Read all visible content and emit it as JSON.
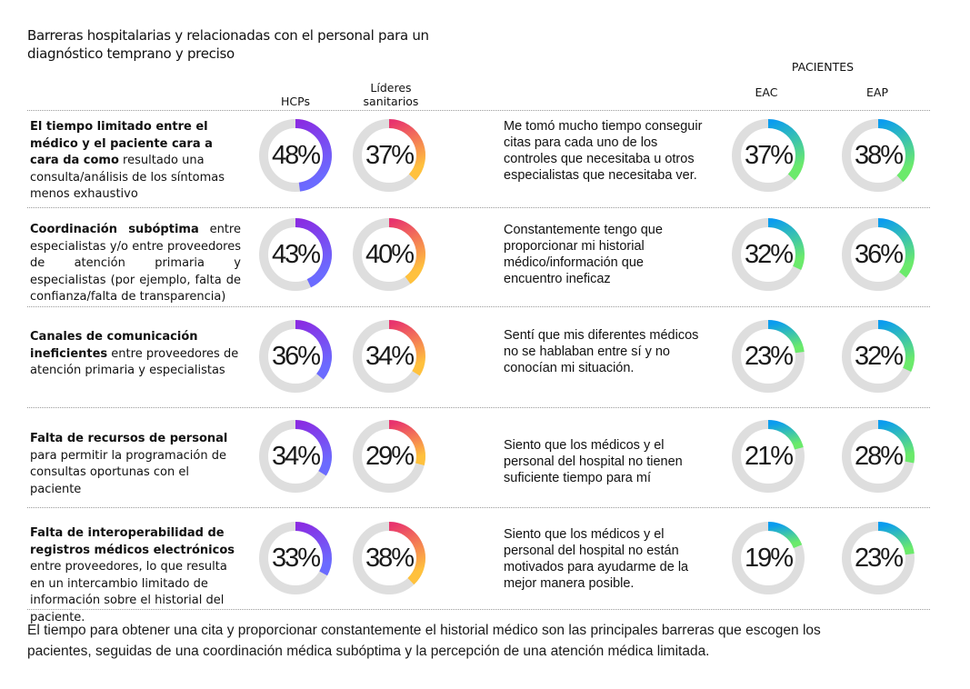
{
  "chart_data": {
    "type": "donut-grid",
    "title": "Barreras hospitalarias y relacionadas con el personal para un diagnóstico temprano y preciso",
    "group_header": "PACIENTES",
    "columns": [
      "HCPs",
      "Líderes sanitarios",
      "EAC",
      "EAP"
    ],
    "colors": {
      "HCPs": [
        "#8a2be2",
        "#6b6bff"
      ],
      "Líderes sanitarios": [
        "#e8336e",
        "#ffc13d"
      ],
      "EAC": [
        "#0a9cf0",
        "#6bea6b"
      ],
      "EAP": [
        "#0a9cf0",
        "#6bea6b"
      ],
      "track": "#dedede"
    },
    "rows": [
      {
        "hcp_bold": "El tiempo limitado entre el médico y el paciente cara a cara da como",
        "hcp_rest": " resultado una consulta/análisis de los síntomas menos exhaustivo",
        "patient_text": "Me tomó mucho tiempo conseguir citas para cada uno de los controles que necesitaba u otros especialistas que necesitaba ver.",
        "values": [
          48,
          37,
          37,
          38
        ]
      },
      {
        "hcp_bold": "Coordinación subóptima",
        "hcp_rest": " entre especialistas y/o entre proveedores de atención primaria y especialistas (por ejemplo, falta de confianza/falta de transparencia)",
        "patient_text": "Constantemente tengo que proporcionar mi historial médico/información que encuentro ineficaz",
        "values": [
          43,
          40,
          32,
          36
        ]
      },
      {
        "hcp_bold": "Canales de comunicación ineficientes",
        "hcp_rest": " entre proveedores de atención primaria y especialistas",
        "patient_text": "Sentí que mis diferentes médicos no se hablaban entre sí y no conocían mi situación.",
        "values": [
          36,
          34,
          23,
          32
        ]
      },
      {
        "hcp_bold": "Falta de recursos de personal",
        "hcp_rest": " para permitir la programación de consultas oportunas con el paciente",
        "patient_text": "Siento que los médicos y el personal del hospital no tienen suficiente tiempo para mí",
        "values": [
          34,
          29,
          21,
          28
        ]
      },
      {
        "hcp_bold": "Falta de interoperabilidad de registros médicos electrónicos",
        "hcp_rest": " entre proveedores, lo que resulta en un intercambio limitado de información sobre el historial del paciente.",
        "patient_text": "Siento que los médicos y el personal del hospital no están motivados para ayudarme de la mejor manera posible.",
        "values": [
          33,
          38,
          19,
          23
        ]
      }
    ],
    "unit": "%",
    "footer": "El tiempo para obtener una cita y proporcionar constantemente el historial médico son las principales barreras que escogen los pacientes, seguidas de una coordinación médica subóptima y la percepción de una atención médica limitada."
  }
}
